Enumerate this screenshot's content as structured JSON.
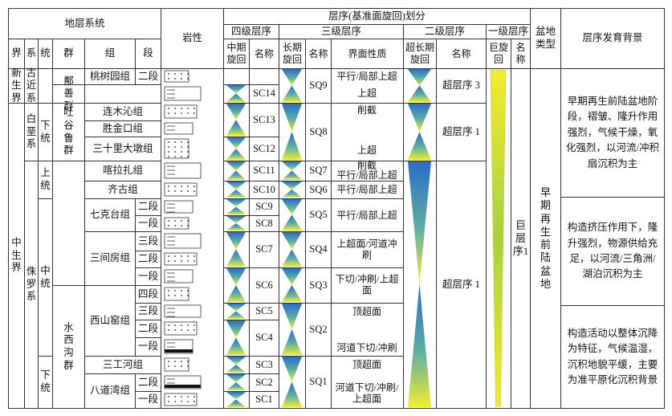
{
  "header": {
    "stratigraphy": "地层系统",
    "lithology": "岩性",
    "sequence": "层序(基准面旋回)划分",
    "basin": "盆地类型",
    "background": "层序发育背景",
    "levels": [
      "四级层序",
      "三级层序",
      "二级层序",
      "一级层序"
    ],
    "strat_cols": [
      "界",
      "系",
      "统",
      "群",
      "组",
      "段"
    ],
    "seq_cols": [
      "中期旋回",
      "名称",
      "长期旋回",
      "名称",
      "界面性质",
      "超长期旋回",
      "名称",
      "巨旋回",
      "名称"
    ]
  },
  "era": [
    "新生界",
    "中生界"
  ],
  "system": [
    "古近系",
    "白垩系",
    "侏罗系"
  ],
  "series": [
    "下统",
    "上统",
    "中统",
    "下统"
  ],
  "group": [
    "鄯善群",
    "吐谷鲁群",
    "水西沟群"
  ],
  "formation": [
    "桃树园组",
    "连木沁组",
    "胜金口组",
    "三十里大墩组",
    "喀拉扎组",
    "齐古组",
    "七克台组",
    "三间房组",
    "西山窑组",
    "三工河组",
    "八道湾组"
  ],
  "member": [
    "二段",
    "二段",
    "一段",
    "三段",
    "二段",
    "一段",
    "四段",
    "三段",
    "二段",
    "一段",
    "二段",
    "一段"
  ],
  "sc": [
    "SC14",
    "SC13",
    "SC12",
    "SC11",
    "SC10",
    "SC9",
    "SC8",
    "SC7",
    "SC6",
    "SC5",
    "SC4",
    "SC3",
    "SC2",
    "SC1"
  ],
  "sq": [
    "SQ9",
    "SQ8",
    "SQ7",
    "SQ6",
    "SQ5",
    "SQ4",
    "SQ3",
    "SQ2",
    "SQ1"
  ],
  "interface": [
    "平行/局部上超",
    "上超",
    "削截",
    "上超",
    "削截",
    "平行/局部上超",
    "平行/局部上超",
    "平行/局部上超",
    "上超面/河道冲刷",
    "下切/冲刷/上超面",
    "顶超面",
    "河道下切/冲刷",
    "顶超面",
    "河道下切/冲刷/上超面"
  ],
  "super": [
    "超层序 3",
    "超层序 1",
    "超层序 1"
  ],
  "mega": "巨层序1",
  "basin_type": "早期再生前陆盆地",
  "background": [
    "早期再生前陆盆地阶段，褶皱、隆升作用强烈，气候干燥，氧化强烈，以河流/冲积扇沉积为主",
    "构造挤压作用下，隆升强烈，物源供给充足，以河流/三角洲/湖泊沉积为主",
    "构造活动以整体沉降为特征，气候温湿，沉积地貌平缓，主要为准平原化沉积背景"
  ]
}
